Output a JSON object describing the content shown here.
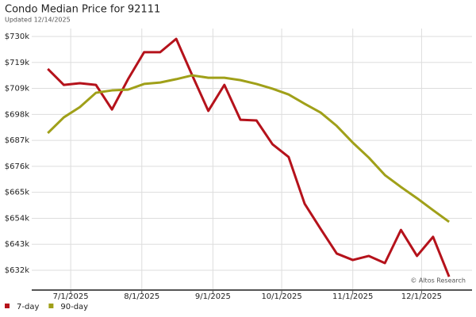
{
  "chart_data": {
    "type": "line",
    "title": "Condo Median Price for 92111",
    "subtitle": "Updated 12/14/2025",
    "annotation": "© Altos Research",
    "x": [
      "2025-06-21",
      "2025-06-28",
      "2025-07-05",
      "2025-07-12",
      "2025-07-19",
      "2025-07-26",
      "2025-08-02",
      "2025-08-09",
      "2025-08-16",
      "2025-08-23",
      "2025-08-30",
      "2025-09-06",
      "2025-09-13",
      "2025-09-20",
      "2025-09-27",
      "2025-10-04",
      "2025-10-11",
      "2025-10-18",
      "2025-10-25",
      "2025-11-01",
      "2025-11-08",
      "2025-11-15",
      "2025-11-22",
      "2025-11-29",
      "2025-12-06",
      "2025-12-13"
    ],
    "series": [
      {
        "name": "7-day",
        "color": "#b5121b",
        "values": [
          716700,
          710000,
          710700,
          710000,
          699700,
          712400,
          723700,
          723700,
          729300,
          714000,
          699100,
          710000,
          695400,
          695100,
          685100,
          679800,
          660200,
          649600,
          639300,
          636600,
          638300,
          635300,
          649200,
          638300,
          646300,
          629600
        ]
      },
      {
        "name": "90-day",
        "color": "#a0a019",
        "values": [
          689800,
          696400,
          700700,
          706700,
          707700,
          708000,
          710400,
          711000,
          712400,
          714000,
          713000,
          713000,
          712000,
          710400,
          708400,
          706000,
          702100,
          698400,
          692800,
          685800,
          679500,
          672200,
          667200,
          662500,
          657500,
          652600
        ]
      }
    ],
    "xlim": [
      "2025-06-14",
      "2025-12-23"
    ],
    "xticks": [
      {
        "value": "2025-07-01",
        "label": "7/1/2025"
      },
      {
        "value": "2025-08-01",
        "label": "8/1/2025"
      },
      {
        "value": "2025-09-01",
        "label": "9/1/2025"
      },
      {
        "value": "2025-10-01",
        "label": "10/1/2025"
      },
      {
        "value": "2025-11-01",
        "label": "11/1/2025"
      },
      {
        "value": "2025-12-01",
        "label": "12/1/2025"
      }
    ],
    "ylim": [
      624330,
      733630
    ],
    "yticks": [
      {
        "value": 632300,
        "label": "$632k"
      },
      {
        "value": 643190,
        "label": "$643k"
      },
      {
        "value": 654080,
        "label": "$654k"
      },
      {
        "value": 664970,
        "label": "$665k"
      },
      {
        "value": 675860,
        "label": "$676k"
      },
      {
        "value": 686750,
        "label": "$687k"
      },
      {
        "value": 697640,
        "label": "$698k"
      },
      {
        "value": 708530,
        "label": "$709k"
      },
      {
        "value": 719420,
        "label": "$719k"
      },
      {
        "value": 730310,
        "label": "$730k"
      }
    ],
    "grid": true,
    "legend": "bottom-left"
  }
}
